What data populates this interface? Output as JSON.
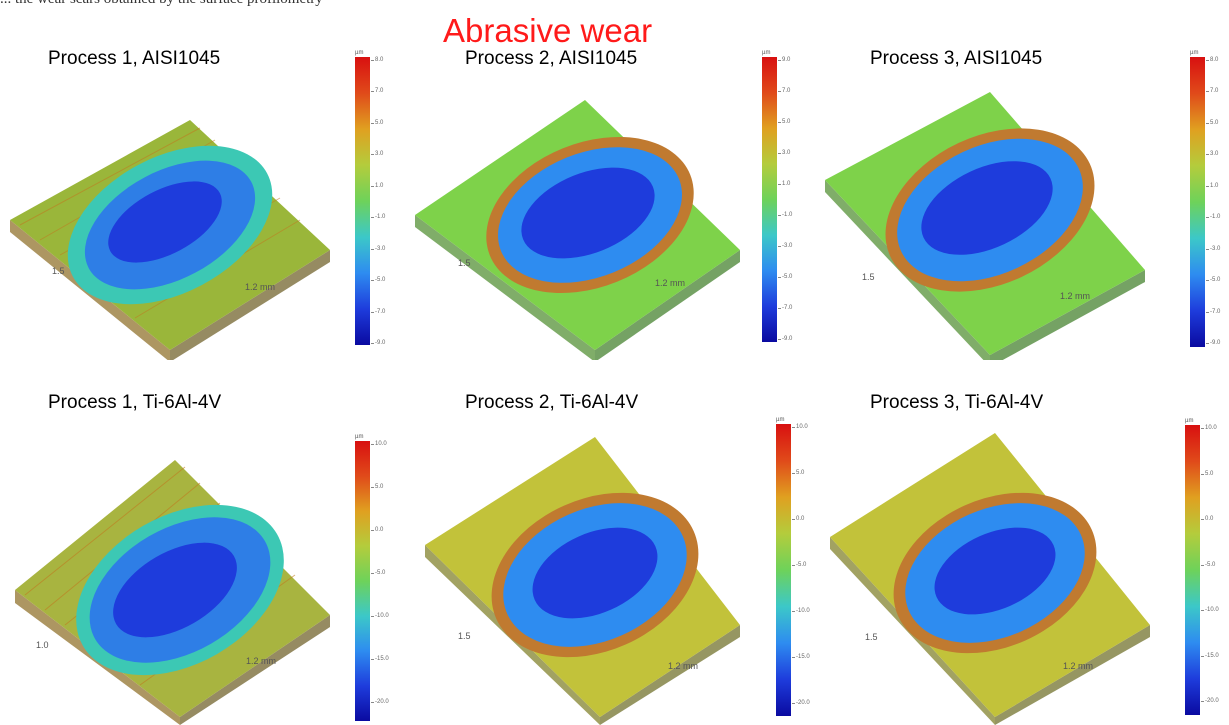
{
  "header": {
    "caption": "... the wear scars obtained by the surface profilometry",
    "title": "Abrasive wear"
  },
  "colors": {
    "title": "#ff1a1a",
    "colormap": [
      "#0a0aa0",
      "#1e3cdc",
      "#2e8cf0",
      "#3cc8c8",
      "#6ed25a",
      "#b4cc3c",
      "#e0a020",
      "#e04a1a",
      "#d81010"
    ]
  },
  "panels": [
    {
      "title": "Process 1, AISI1045",
      "dim_y": "1.5",
      "dim_x": "1.2 mm",
      "colorbar": {
        "unit": "µm",
        "ticks": [
          "8.0",
          "7.0",
          "5.0",
          "3.0",
          "1.0",
          "-1.0",
          "-3.0",
          "-5.0",
          "-7.0",
          "-9.0"
        ]
      }
    },
    {
      "title": "Process 2, AISI1045",
      "dim_y": "1.5",
      "dim_x": "1.2 mm",
      "colorbar": {
        "unit": "µm",
        "ticks": [
          "9.0",
          "7.0",
          "5.0",
          "3.0",
          "1.0",
          "-1.0",
          "-3.0",
          "-5.0",
          "-7.0",
          "-9.0"
        ]
      }
    },
    {
      "title": "Process 3, AISI1045",
      "dim_y": "1.5",
      "dim_x": "1.2 mm",
      "colorbar": {
        "unit": "µm",
        "ticks": [
          "8.0",
          "7.0",
          "5.0",
          "3.0",
          "1.0",
          "-1.0",
          "-3.0",
          "-5.0",
          "-7.0",
          "-9.0"
        ]
      }
    },
    {
      "title": "Process 1, Ti-6Al-4V",
      "dim_y": "1.0",
      "dim_x": "1.2 mm",
      "colorbar": {
        "unit": "µm",
        "ticks": [
          "10.0",
          "5.0",
          "0.0",
          "-5.0",
          "-10.0",
          "-15.0",
          "-20.0"
        ]
      }
    },
    {
      "title": "Process 2, Ti-6Al-4V",
      "dim_y": "1.5",
      "dim_x": "1.2 mm",
      "colorbar": {
        "unit": "µm",
        "ticks": [
          "10.0",
          "5.0",
          "0.0",
          "-5.0",
          "-10.0",
          "-15.0",
          "-20.0"
        ]
      }
    },
    {
      "title": "Process 3, Ti-6Al-4V",
      "dim_y": "1.5",
      "dim_x": "1.2 mm",
      "colorbar": {
        "unit": "µm",
        "ticks": [
          "10.0",
          "5.0",
          "0.0",
          "-5.0",
          "-10.0",
          "-15.0",
          "-20.0"
        ]
      }
    }
  ]
}
